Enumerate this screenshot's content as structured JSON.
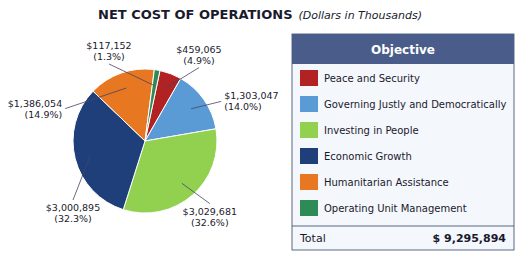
{
  "chart_data": {
    "type": "pie",
    "title": "NET COST OF OPERATIONS",
    "subtitle": "(Dollars in Thousands)",
    "categories": [
      "Peace and Security",
      "Governing Justly and Democratically",
      "Investing in People",
      "Economic Growth",
      "Humanitarian Assistance",
      "Operating Unit Management"
    ],
    "values": [
      459065,
      1303047,
      3029681,
      3000895,
      1386054,
      117152
    ],
    "value_labels": [
      "$459,065\n(4.9%)",
      "$1,303,047\n(14.0%)",
      "$3,029,681\n(32.6%)",
      "$3,000,895\n(32.3%)",
      "$1,386,054\n(14.9%)",
      "$117,152\n(1.3%)"
    ],
    "colors": [
      "#b22222",
      "#5b9bd5",
      "#92d050",
      "#1f3f7a",
      "#e87722",
      "#2e8b57"
    ],
    "data_labels": true,
    "legend": "right",
    "legend_title": "Objective",
    "total": {
      "label": "Total",
      "value": 9295894,
      "value_label": "$ 9,295,894"
    }
  }
}
